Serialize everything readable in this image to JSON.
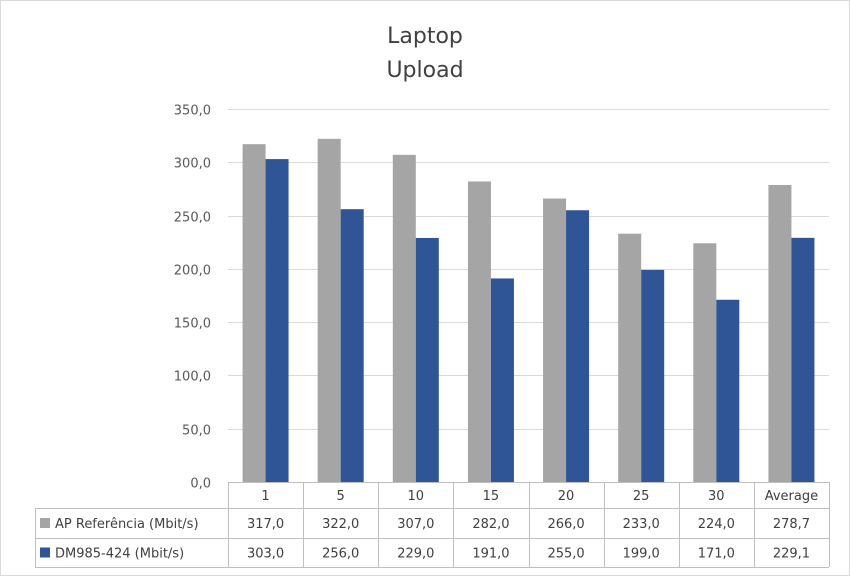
{
  "chart_data": {
    "type": "bar",
    "title": [
      "Laptop",
      "Upload"
    ],
    "categories": [
      "1",
      "5",
      "10",
      "15",
      "20",
      "25",
      "30",
      "Average"
    ],
    "series": [
      {
        "name": "AP Referência (Mbit/s)",
        "color": "#a5a5a5",
        "values": [
          317.0,
          322.0,
          307.0,
          282.0,
          266.0,
          233.0,
          224.0,
          278.7
        ],
        "labels": [
          "317,0",
          "322,0",
          "307,0",
          "282,0",
          "266,0",
          "233,0",
          "224,0",
          "278,7"
        ]
      },
      {
        "name": "DM985-424 (Mbit/s)",
        "color": "#2f5597",
        "values": [
          303.0,
          256.0,
          229.0,
          191.0,
          255.0,
          199.0,
          171.0,
          229.1
        ],
        "labels": [
          "303,0",
          "256,0",
          "229,0",
          "191,0",
          "255,0",
          "199,0",
          "171,0",
          "229,1"
        ]
      }
    ],
    "yticks": [
      0,
      50,
      100,
      150,
      200,
      250,
      300,
      350
    ],
    "ytick_labels": [
      "0,0",
      "50,0",
      "100,0",
      "150,0",
      "200,0",
      "250,0",
      "300,0",
      "350,0"
    ],
    "ylim": [
      0,
      350
    ],
    "grid": true,
    "legend": "data table below plot"
  }
}
